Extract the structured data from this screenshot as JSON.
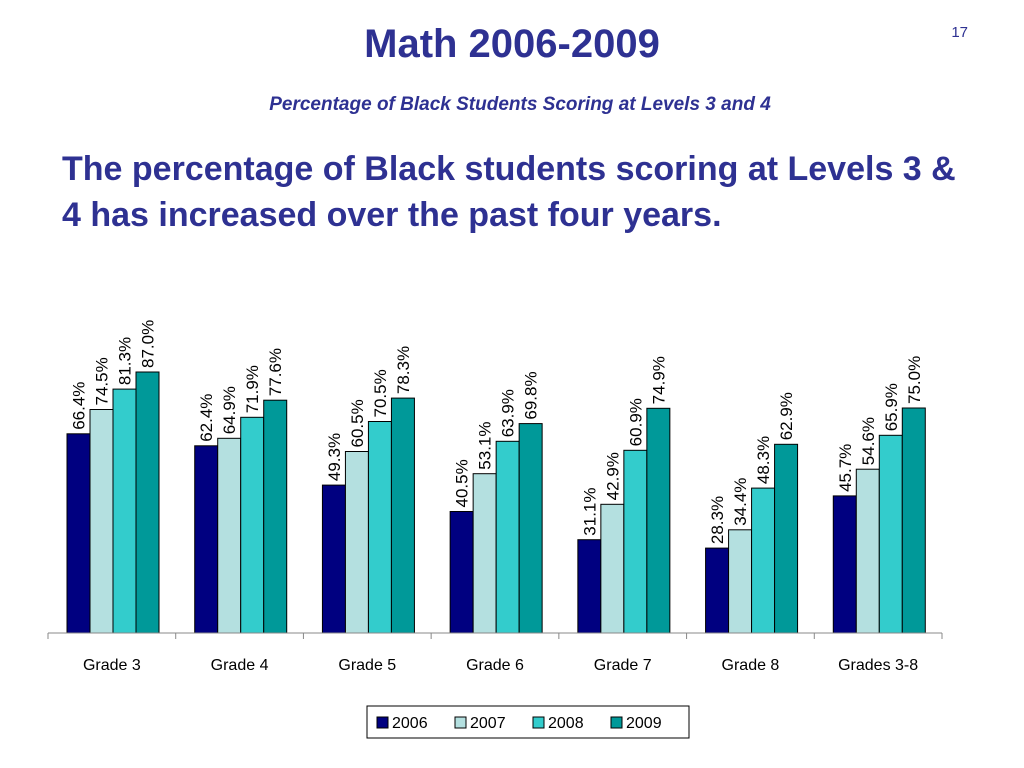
{
  "slide": {
    "number": "17",
    "title": "Math 2006-2009",
    "subtitle": "Percentage of Black Students Scoring at Levels 3 and 4",
    "headline": "The percentage of Black students scoring at Levels 3 & 4 has increased over the past four years."
  },
  "chart_data": {
    "type": "bar",
    "title": "",
    "xlabel": "",
    "ylabel": "",
    "ylim": [
      0,
      100
    ],
    "grid": false,
    "legend_position": "bottom",
    "categories": [
      "Grade 3",
      "Grade 4",
      "Grade 5",
      "Grade 6",
      "Grade 7",
      "Grade 8",
      "Grades 3-8"
    ],
    "series": [
      {
        "name": "2006",
        "color": "#000080",
        "values": [
          66.4,
          62.4,
          49.3,
          40.5,
          31.1,
          28.3,
          45.7
        ],
        "labels": [
          "66.4%",
          "62.4%",
          "49.3%",
          "40.5%",
          "31.1%",
          "28.3%",
          "45.7%"
        ]
      },
      {
        "name": "2007",
        "color": "#b4e0e0",
        "values": [
          74.5,
          64.9,
          60.5,
          53.1,
          42.9,
          34.4,
          54.6
        ],
        "labels": [
          "74.5%",
          "64.9%",
          "60.5%",
          "53.1%",
          "42.9%",
          "34.4%",
          "54.6%"
        ]
      },
      {
        "name": "2008",
        "color": "#33cccc",
        "values": [
          81.3,
          71.9,
          70.5,
          63.9,
          60.9,
          48.3,
          65.9
        ],
        "labels": [
          "81.3%",
          "71.9%",
          "70.5%",
          "63.9%",
          "60.9%",
          "48.3%",
          "65.9%"
        ]
      },
      {
        "name": "2009",
        "color": "#009999",
        "values": [
          87.0,
          77.6,
          78.3,
          69.8,
          74.9,
          62.9,
          75.0
        ],
        "labels": [
          "87.0%",
          "77.6%",
          "78.3%",
          "69.8%",
          "74.9%",
          "62.9%",
          "75.0%"
        ]
      }
    ]
  }
}
